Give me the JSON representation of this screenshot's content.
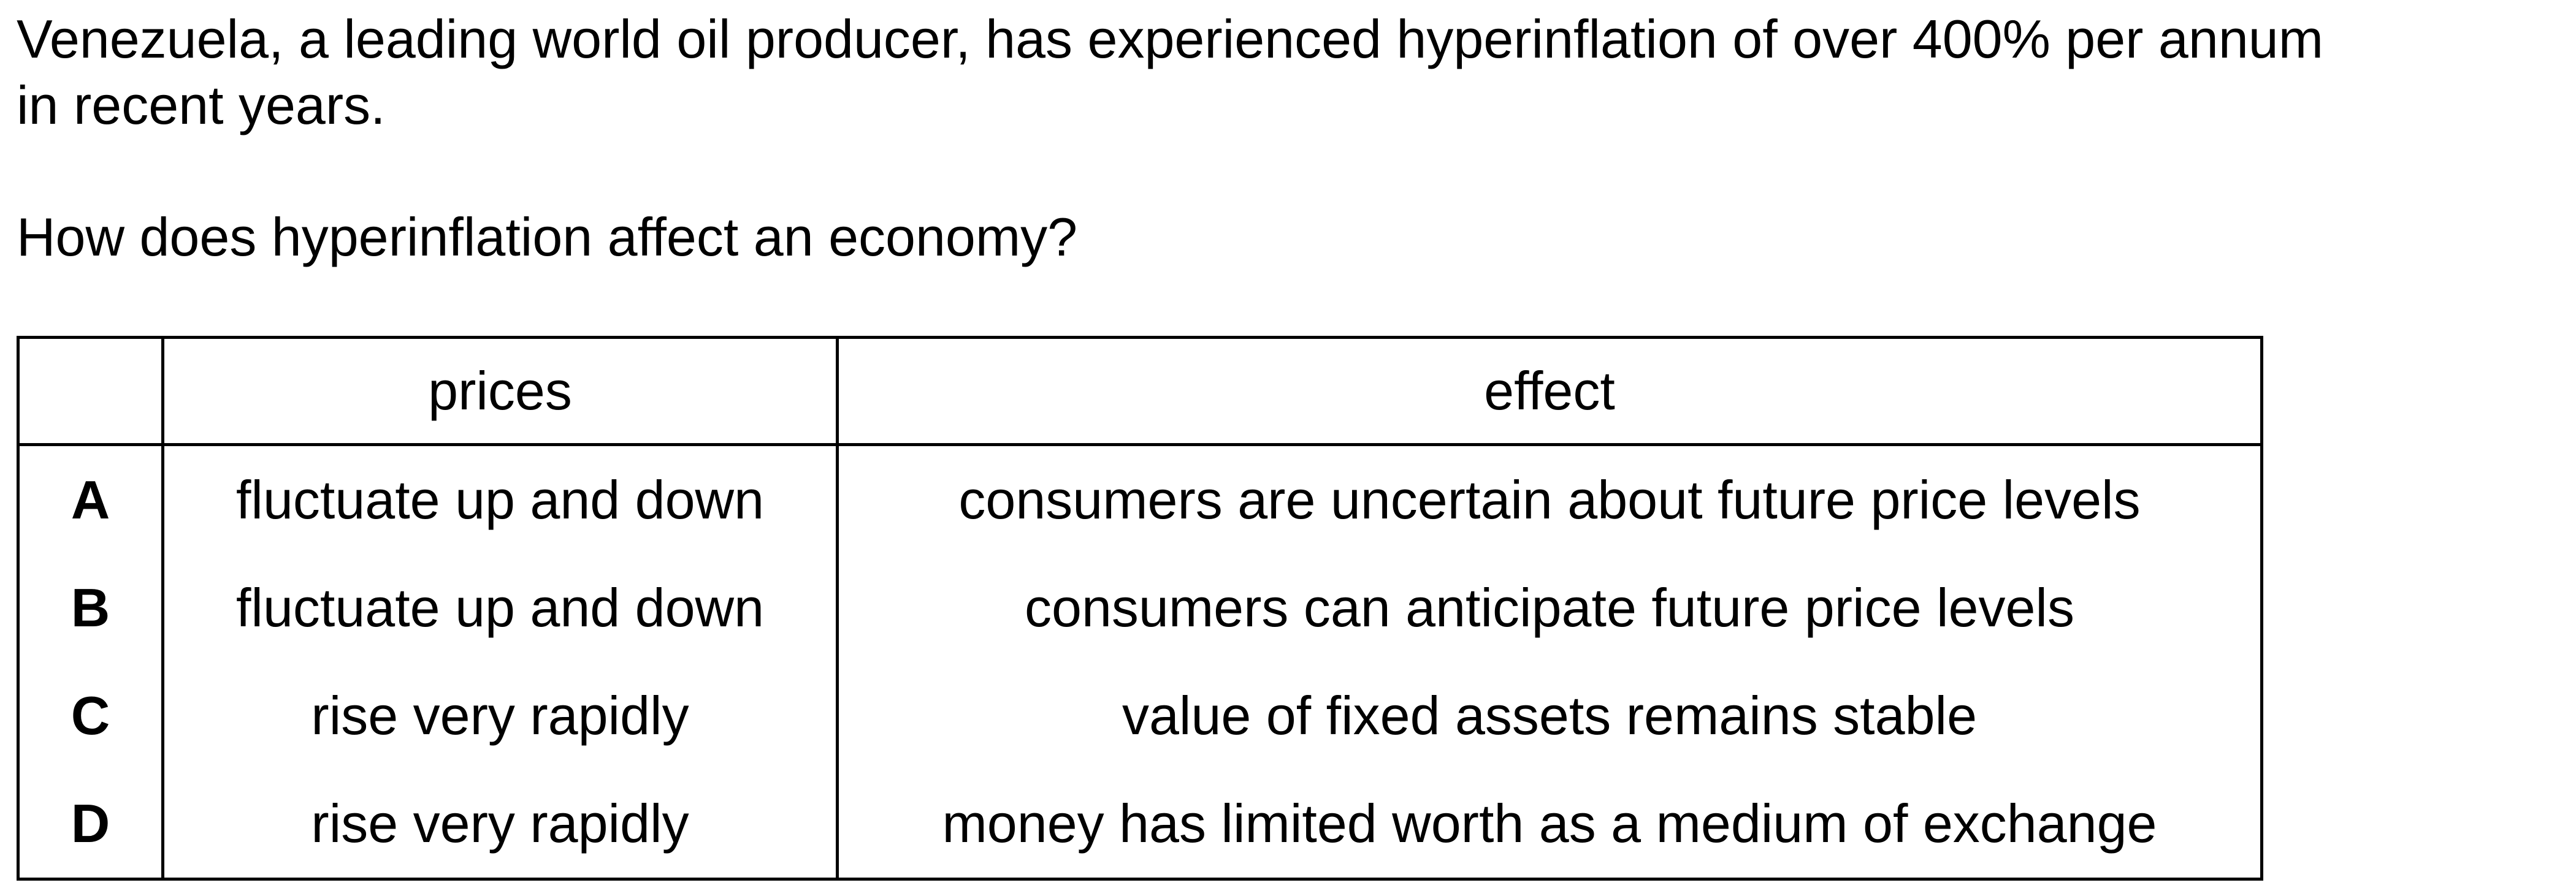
{
  "stem": {
    "line1": "Venezuela, a leading world oil producer, has experienced hyperinflation of over 400% per annum",
    "line2": "in recent years."
  },
  "question": "How does hyperinflation affect an economy?",
  "table": {
    "headers": [
      "",
      "prices",
      "effect"
    ],
    "rows": [
      {
        "letter": "A",
        "prices": "fluctuate up and down",
        "effect": "consumers are uncertain about future price levels"
      },
      {
        "letter": "B",
        "prices": "fluctuate up and down",
        "effect": "consumers can anticipate future price levels"
      },
      {
        "letter": "C",
        "prices": "rise very rapidly",
        "effect": "value of fixed assets remains stable"
      },
      {
        "letter": "D",
        "prices": "rise very rapidly",
        "effect": "money has limited worth as a medium of exchange"
      }
    ]
  }
}
